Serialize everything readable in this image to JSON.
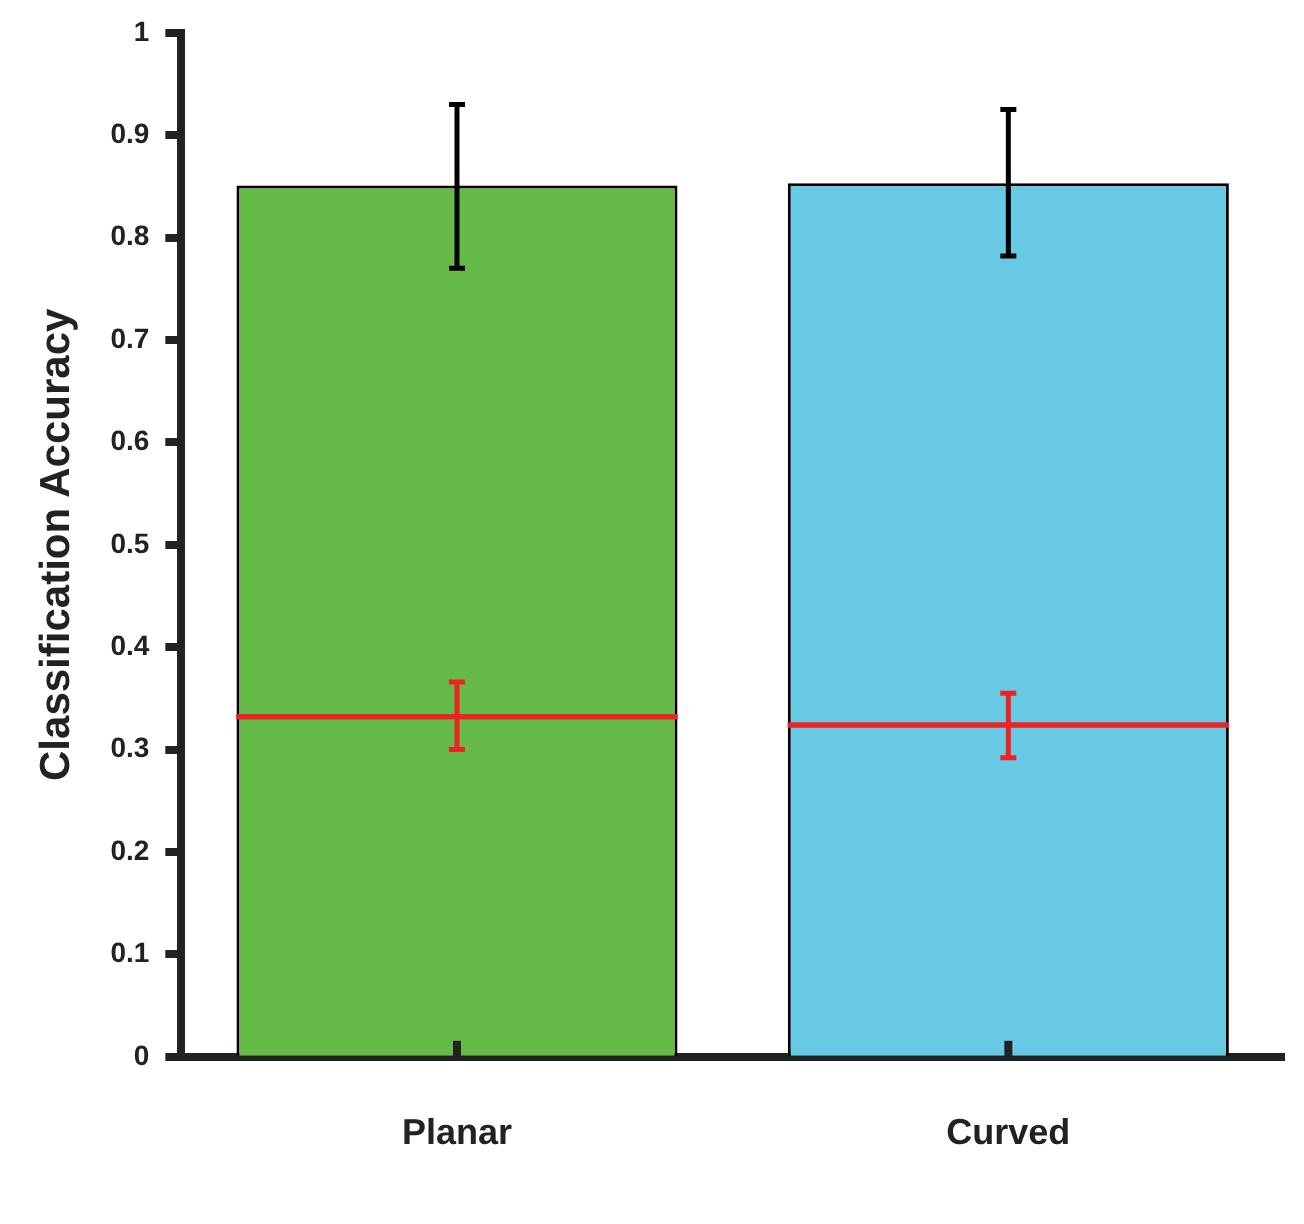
{
  "chart_data": {
    "type": "bar",
    "ylabel": "Classification Accuracy",
    "categories": [
      "Planar",
      "Curved"
    ],
    "ylim": [
      0,
      1
    ],
    "yticks": [
      0,
      0.1,
      0.2,
      0.3,
      0.4,
      0.5,
      0.6,
      0.7,
      0.8,
      0.9,
      1
    ],
    "grid": false,
    "legend": false,
    "series": [
      {
        "colors": [
          "#66bb48",
          "#67c9e3"
        ],
        "values": [
          0.851,
          0.853
        ],
        "errors": [
          [
            0.77,
            0.93
          ],
          [
            0.782,
            0.925
          ]
        ],
        "color": "#000000"
      },
      {
        "type": "box",
        "color": "#ee2222",
        "boxes": [
          {
            "low": 0.3,
            "q1": 0.332,
            "median": 0.332,
            "q3": 0.332,
            "high": 0.366
          },
          {
            "low": 0.292,
            "q1": 0.324,
            "median": 0.324,
            "q3": 0.324,
            "high": 0.355
          }
        ]
      }
    ]
  }
}
